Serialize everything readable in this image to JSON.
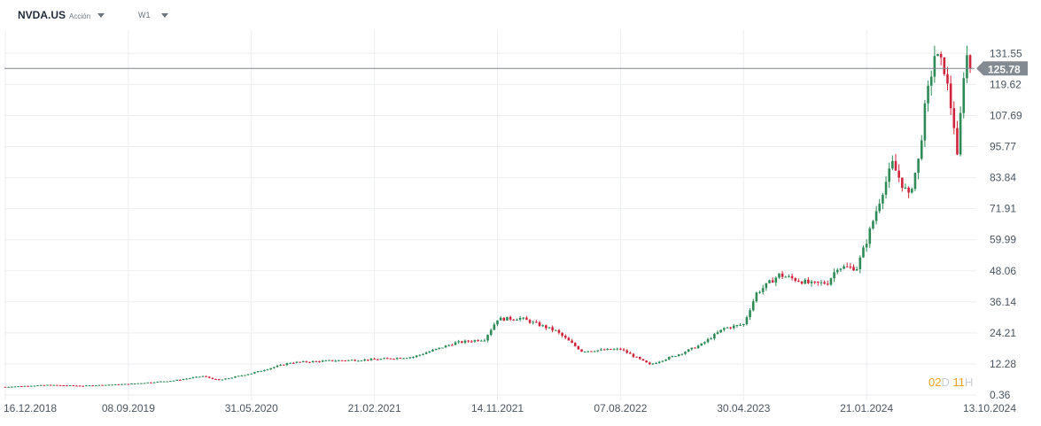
{
  "header": {
    "symbol": "NVDA.US",
    "asset_type": "Acción",
    "timeframe": "W1"
  },
  "countdown": {
    "days": "02",
    "days_unit": "D",
    "hours": "11",
    "hours_unit": "H"
  },
  "colors": {
    "up": "#2e8b57",
    "down": "#d0243d",
    "grid": "#eceef0",
    "price_line": "#7d8389",
    "price_tag": "#838a91",
    "axis_text": "#4a5561"
  },
  "chart_data": {
    "type": "candlestick",
    "series": [
      {
        "name": "NVDA.US"
      }
    ],
    "current_price": 125.78,
    "y_ticks": [
      131.55,
      119.62,
      107.69,
      95.77,
      83.84,
      71.91,
      59.99,
      48.06,
      36.14,
      24.21,
      12.28,
      0.36
    ],
    "x_ticks": [
      "16.12.2018",
      "08.09.2019",
      "31.05.2020",
      "21.02.2021",
      "14.11.2021",
      "07.08.2022",
      "30.04.2023",
      "21.01.2024",
      "13.10.2024"
    ],
    "x_range": [
      "2018-12-16",
      "2024-10-13"
    ],
    "ylim": [
      0.36,
      140.5
    ],
    "grid": true,
    "price_points": [
      [
        "2018-12-16",
        3.5
      ],
      [
        "2019-03-17",
        4.2
      ],
      [
        "2019-06-02",
        3.9
      ],
      [
        "2019-09-08",
        4.6
      ],
      [
        "2019-12-15",
        5.9
      ],
      [
        "2020-02-16",
        7.6
      ],
      [
        "2020-03-22",
        6.0
      ],
      [
        "2020-05-31",
        8.7
      ],
      [
        "2020-08-23",
        12.8
      ],
      [
        "2020-11-15",
        13.5
      ],
      [
        "2021-02-21",
        14.0
      ],
      [
        "2021-05-16",
        15.0
      ],
      [
        "2021-08-15",
        20.4
      ],
      [
        "2021-10-17",
        21.8
      ],
      [
        "2021-11-14",
        29.5
      ],
      [
        "2022-01-02",
        29.9
      ],
      [
        "2022-03-20",
        25.0
      ],
      [
        "2022-05-15",
        17.2
      ],
      [
        "2022-08-07",
        18.0
      ],
      [
        "2022-10-09",
        12.0
      ],
      [
        "2022-12-18",
        16.5
      ],
      [
        "2023-01-29",
        19.8
      ],
      [
        "2023-03-19",
        26.0
      ],
      [
        "2023-04-30",
        27.5
      ],
      [
        "2023-05-28",
        39.5
      ],
      [
        "2023-07-16",
        46.5
      ],
      [
        "2023-09-24",
        43.0
      ],
      [
        "2023-10-29",
        43.5
      ],
      [
        "2023-11-19",
        49.5
      ],
      [
        "2023-12-31",
        49.2
      ],
      [
        "2024-01-21",
        59.5
      ],
      [
        "2024-02-25",
        79.0
      ],
      [
        "2024-03-17",
        89.0
      ],
      [
        "2024-04-21",
        76.5
      ],
      [
        "2024-05-12",
        90.3
      ],
      [
        "2024-05-26",
        110.0
      ],
      [
        "2024-06-16",
        131.0
      ],
      [
        "2024-07-07",
        125.8
      ],
      [
        "2024-07-28",
        104.0
      ],
      [
        "2024-08-04",
        91.0
      ],
      [
        "2024-08-18",
        124.0
      ],
      [
        "2024-08-25",
        130.6
      ],
      [
        "2024-09-01",
        126.5
      ]
    ]
  }
}
